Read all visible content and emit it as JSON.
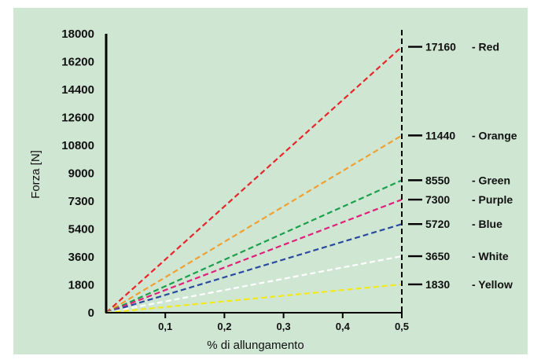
{
  "chart_data": {
    "type": "line",
    "background": "#cfe6d3",
    "xlabel": "% di allungamento",
    "ylabel": "Forza [N]",
    "xlim": [
      0,
      0.5
    ],
    "ylim": [
      0,
      18000
    ],
    "y_ticks": [
      "0",
      "1800",
      "3600",
      "5400",
      "7300",
      "9000",
      "10800",
      "12600",
      "14400",
      "16200",
      "18000"
    ],
    "x_ticks": [
      "0,1",
      "0,2",
      "0,3",
      "0,4",
      "0,5"
    ],
    "x_tick_values": [
      0.1,
      0.2,
      0.3,
      0.4,
      0.5
    ],
    "grid": false,
    "series": [
      {
        "name": "- Red",
        "color": "#e8262a",
        "x": [
          0,
          0.5
        ],
        "y": [
          0,
          17160
        ],
        "end_label": "17160"
      },
      {
        "name": "- Orange",
        "color": "#f0a030",
        "x": [
          0,
          0.5
        ],
        "y": [
          0,
          11440
        ],
        "end_label": "11440"
      },
      {
        "name": "- Green",
        "color": "#1aa04a",
        "x": [
          0,
          0.5
        ],
        "y": [
          0,
          8550
        ],
        "end_label": "8550"
      },
      {
        "name": "- Purple",
        "color": "#e0207a",
        "x": [
          0,
          0.5
        ],
        "y": [
          0,
          7300
        ],
        "end_label": "7300"
      },
      {
        "name": "- Blue",
        "color": "#2a4aa0",
        "x": [
          0,
          0.5
        ],
        "y": [
          0,
          5720
        ],
        "end_label": "5720"
      },
      {
        "name": "- White",
        "color": "#ffffff",
        "x": [
          0,
          0.5
        ],
        "y": [
          0,
          3650
        ],
        "end_label": "3650"
      },
      {
        "name": "- Yellow",
        "color": "#f2e81a",
        "x": [
          0,
          0.5
        ],
        "y": [
          0,
          1830
        ],
        "end_label": "1830"
      }
    ]
  }
}
